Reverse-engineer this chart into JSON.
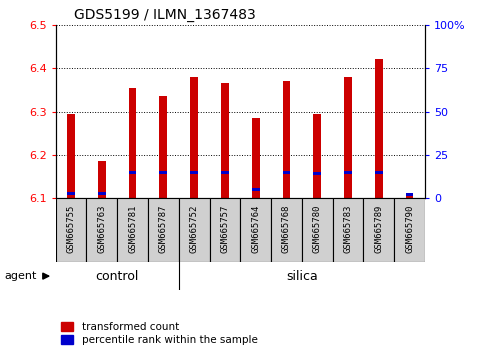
{
  "title": "GDS5199 / ILMN_1367483",
  "samples": [
    "GSM665755",
    "GSM665763",
    "GSM665781",
    "GSM665787",
    "GSM665752",
    "GSM665757",
    "GSM665764",
    "GSM665768",
    "GSM665780",
    "GSM665783",
    "GSM665789",
    "GSM665790"
  ],
  "transformed_count": [
    6.295,
    6.185,
    6.355,
    6.335,
    6.38,
    6.365,
    6.285,
    6.37,
    6.295,
    6.38,
    6.42,
    6.105
  ],
  "percentile_rank": [
    3,
    3,
    15,
    15,
    15,
    15,
    5,
    15,
    14,
    15,
    15,
    2
  ],
  "bar_bottom": 6.1,
  "ylim": [
    6.1,
    6.5
  ],
  "y2lim": [
    0,
    100
  ],
  "yticks": [
    6.1,
    6.2,
    6.3,
    6.4,
    6.5
  ],
  "y2ticks": [
    0,
    25,
    50,
    75,
    100
  ],
  "y2ticklabels": [
    "0",
    "25",
    "50",
    "75",
    "100%"
  ],
  "bar_color": "#cc0000",
  "blue_color": "#0000cc",
  "plot_bg": "#ffffff",
  "tick_box_bg": "#d0d0d0",
  "green_color": "#66ee66",
  "n_control": 4,
  "n_silica": 8,
  "bar_width": 0.25,
  "agent_label": "agent",
  "control_label": "control",
  "silica_label": "silica",
  "legend_red_label": "transformed count",
  "legend_blue_label": "percentile rank within the sample",
  "blue_thickness": 0.007
}
